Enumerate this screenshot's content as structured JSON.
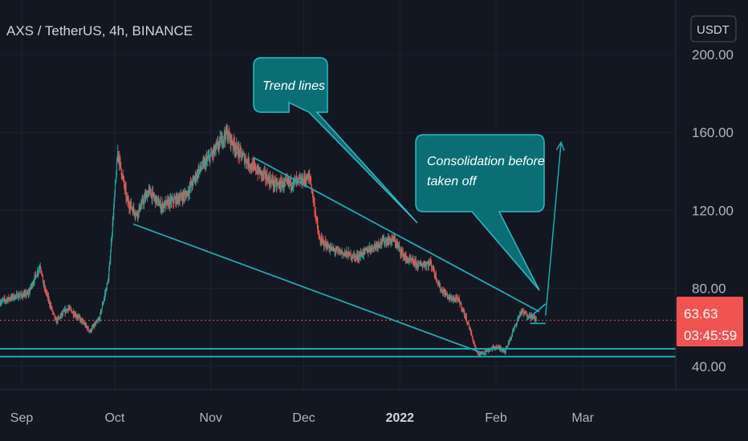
{
  "chart_data": {
    "type": "candlestick",
    "title": "AXS / TetherUS, 4h, BINANCE",
    "currency": "USDT",
    "y_ticks": [
      "200.00",
      "160.00",
      "120.00",
      "80.00",
      "40.00"
    ],
    "y_tick_values": [
      200,
      160,
      120,
      80,
      40
    ],
    "ylim": [
      28,
      228
    ],
    "x_ticks": [
      {
        "label": "Sep",
        "date": "2021-09-01",
        "bold": false
      },
      {
        "label": "Oct",
        "date": "2021-10-01",
        "bold": false
      },
      {
        "label": "Nov",
        "date": "2021-11-01",
        "bold": false
      },
      {
        "label": "Dec",
        "date": "2021-12-01",
        "bold": false
      },
      {
        "label": "2022",
        "date": "2022-01-01",
        "bold": true
      },
      {
        "label": "Feb",
        "date": "2022-02-01",
        "bold": false
      },
      {
        "label": "Mar",
        "date": "2022-03-01",
        "bold": false
      }
    ],
    "xlim": [
      "2021-08-25",
      "2022-03-31"
    ],
    "current_price": "63.63",
    "current_price_value": 63.63,
    "countdown": "03:45:59",
    "price_path": [
      [
        "2021-08-25",
        73
      ],
      [
        "2021-08-30",
        76
      ],
      [
        "2021-09-03",
        77
      ],
      [
        "2021-09-07",
        92
      ],
      [
        "2021-09-08",
        82
      ],
      [
        "2021-09-12",
        63
      ],
      [
        "2021-09-16",
        70
      ],
      [
        "2021-09-20",
        64
      ],
      [
        "2021-09-23",
        58
      ],
      [
        "2021-09-26",
        64
      ],
      [
        "2021-09-29",
        85
      ],
      [
        "2021-10-01",
        128
      ],
      [
        "2021-10-02",
        150
      ],
      [
        "2021-10-05",
        125
      ],
      [
        "2021-10-08",
        118
      ],
      [
        "2021-10-12",
        130
      ],
      [
        "2021-10-16",
        122
      ],
      [
        "2021-10-20",
        125
      ],
      [
        "2021-10-24",
        128
      ],
      [
        "2021-10-28",
        140
      ],
      [
        "2021-11-02",
        150
      ],
      [
        "2021-11-06",
        160
      ],
      [
        "2021-11-10",
        150
      ],
      [
        "2021-11-14",
        143
      ],
      [
        "2021-11-18",
        138
      ],
      [
        "2021-11-22",
        133
      ],
      [
        "2021-11-26",
        134
      ],
      [
        "2021-11-30",
        135
      ],
      [
        "2021-12-03",
        137
      ],
      [
        "2021-12-06",
        105
      ],
      [
        "2021-12-10",
        100
      ],
      [
        "2021-12-14",
        98
      ],
      [
        "2021-12-18",
        96
      ],
      [
        "2021-12-22",
        100
      ],
      [
        "2021-12-26",
        104
      ],
      [
        "2021-12-30",
        105
      ],
      [
        "2022-01-03",
        95
      ],
      [
        "2022-01-07",
        92
      ],
      [
        "2022-01-11",
        93
      ],
      [
        "2022-01-14",
        80
      ],
      [
        "2022-01-17",
        75
      ],
      [
        "2022-01-20",
        74
      ],
      [
        "2022-01-23",
        62
      ],
      [
        "2022-01-26",
        46
      ],
      [
        "2022-01-29",
        48
      ],
      [
        "2022-02-01",
        50
      ],
      [
        "2022-02-04",
        48
      ],
      [
        "2022-02-06",
        56
      ],
      [
        "2022-02-09",
        68
      ],
      [
        "2022-02-12",
        66
      ],
      [
        "2022-02-14",
        64
      ]
    ],
    "horizontal_levels": [
      49,
      45
    ],
    "trend_lines": [
      {
        "from": [
          "2021-10-07",
          113
        ],
        "to": [
          "2022-01-29",
          46
        ]
      },
      {
        "from": [
          "2021-11-15",
          147
        ],
        "to": [
          "2022-02-15",
          68
        ]
      },
      {
        "from": [
          "2022-02-11",
          64
        ],
        "to": [
          "2022-02-17",
          72
        ]
      },
      {
        "from": [
          "2022-02-12",
          62
        ],
        "to": [
          "2022-02-17",
          62
        ]
      }
    ],
    "projection_arrow": {
      "from": [
        "2022-02-17",
        66
      ],
      "to": [
        "2022-02-22",
        155
      ]
    },
    "annotations": [
      {
        "text": "Trend lines"
      },
      {
        "text": "Consolidation before taken off"
      }
    ],
    "colors": {
      "background": "#131722",
      "grid": "#1e222d",
      "up_candle": "#26a69a",
      "down_candle": "#ef5350",
      "trend_line": "#1fa9b1",
      "callout_fill": "#0b6e75",
      "callout_border": "#2fbac0",
      "price_tag": "#f05350"
    }
  }
}
